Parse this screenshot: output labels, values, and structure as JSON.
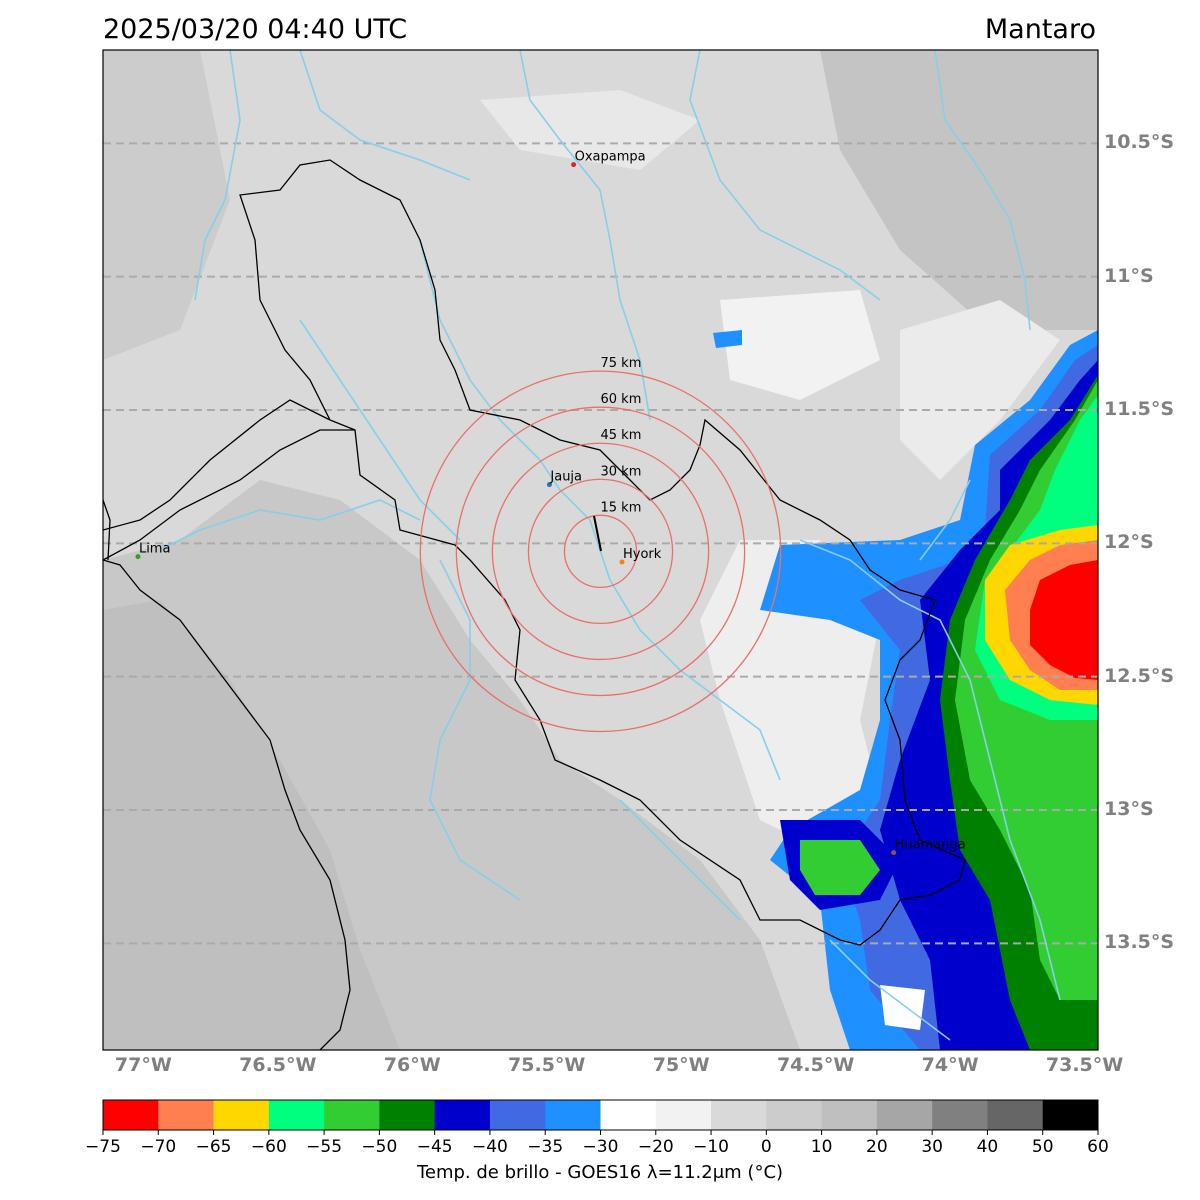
{
  "title": {
    "datetime": "2025/03/20 04:40 UTC",
    "region": "Mantaro"
  },
  "map": {
    "lon_range": [
      -77.15,
      -73.45
    ],
    "lat_range": [
      -13.9,
      -10.15
    ],
    "lat_labels": [
      {
        "lat": -10.5,
        "text": "10.5°S"
      },
      {
        "lat": -11.0,
        "text": "11°S"
      },
      {
        "lat": -11.5,
        "text": "11.5°S"
      },
      {
        "lat": -12.0,
        "text": "12°S"
      },
      {
        "lat": -12.5,
        "text": "12.5°S"
      },
      {
        "lat": -13.0,
        "text": "13°S"
      },
      {
        "lat": -13.5,
        "text": "13.5°S"
      }
    ],
    "lon_labels": [
      {
        "lon": -77.0,
        "text": "77°W"
      },
      {
        "lon": -76.5,
        "text": "76.5°W"
      },
      {
        "lon": -76.0,
        "text": "76°W"
      },
      {
        "lon": -75.5,
        "text": "75.5°W"
      },
      {
        "lon": -75.0,
        "text": "75°W"
      },
      {
        "lon": -74.5,
        "text": "74.5°W"
      },
      {
        "lon": -74.0,
        "text": "74°W"
      },
      {
        "lon": -73.5,
        "text": "73.5°W"
      }
    ],
    "places": [
      {
        "name": "Oxapampa",
        "lon": -75.4,
        "lat": -10.58,
        "dot": "#d62728"
      },
      {
        "name": "Jauja",
        "lon": -75.49,
        "lat": -11.78,
        "dot": "#1f77b4"
      },
      {
        "name": "Hyork",
        "lon": -75.22,
        "lat": -12.07,
        "dot": "#ff7f0e"
      },
      {
        "name": "Lima",
        "lon": -77.02,
        "lat": -12.05,
        "dot": "#2ca02c"
      },
      {
        "name": "Huamanga",
        "lon": -74.21,
        "lat": -13.16,
        "dot": "#8c564b"
      }
    ],
    "radar": {
      "center_lon": -75.3,
      "center_lat": -12.03,
      "rings": [
        {
          "km": 15,
          "label": "15 km"
        },
        {
          "km": 30,
          "label": "30 km"
        },
        {
          "km": 45,
          "label": "45 km"
        },
        {
          "km": 60,
          "label": "60 km"
        },
        {
          "km": 75,
          "label": "75 km"
        }
      ],
      "ring_color": "#e8706a"
    },
    "colors": {
      "background": "#d9d9d9",
      "river": "#87ceeb",
      "border": "#000000",
      "grid": "#aaaaaa"
    }
  },
  "colorbar": {
    "label": "Temp. de brillo - GOES16 λ=11.2μm (°C)",
    "ticks": [
      "−75",
      "−70",
      "−65",
      "−60",
      "−55",
      "−50",
      "−45",
      "−40",
      "−35",
      "−30",
      "−20",
      "−10",
      "0",
      "10",
      "20",
      "30",
      "40",
      "50",
      "60"
    ],
    "colors": [
      "#ff0000",
      "#ff7f50",
      "#ffd700",
      "#00ff7f",
      "#32cd32",
      "#008000",
      "#0000cd",
      "#4169e1",
      "#1e90ff",
      "#ffffff",
      "#f2f2f2",
      "#d9d9d9",
      "#cccccc",
      "#bfbfbf",
      "#a6a6a6",
      "#808080",
      "#666666",
      "#000000"
    ]
  }
}
